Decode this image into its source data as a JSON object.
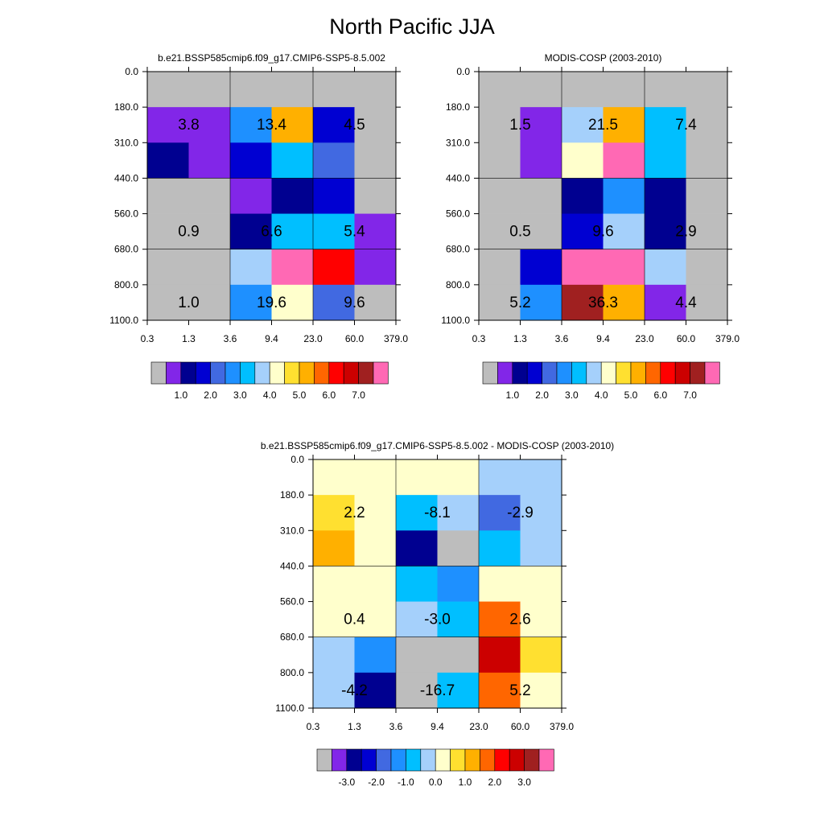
{
  "title": "North Pacific JJA",
  "palette": {
    "grey": "#bdbdbd",
    "violet": "#8226e8",
    "navy": "#000090",
    "blue": "#0000d2",
    "royal": "#4169e1",
    "dodger": "#1e90ff",
    "sky": "#00bfff",
    "lightblue": "#a5d0fb",
    "cream": "#ffffcc",
    "yellow": "#ffe030",
    "gold": "#ffb000",
    "orange": "#ff9a00",
    "darkorange": "#ff6600",
    "red": "#ff0000",
    "crimson": "#cc0000",
    "brown": "#a02020",
    "pink": "#ff69b4"
  },
  "chart_data": [
    {
      "type": "heatmap",
      "title": "b.e21.BSSP585cmip6.f09_g17.CMIP6-SSP5-8.5.002",
      "x_ticks": [
        "0.3",
        "1.3",
        "3.6",
        "9.4",
        "23.0",
        "60.0",
        "379.0"
      ],
      "y_ticks": [
        "0.0",
        "180.0",
        "310.0",
        "440.0",
        "560.0",
        "680.0",
        "800.0",
        "1100.0"
      ],
      "cells": [
        [
          "grey",
          "grey",
          "grey",
          "grey",
          "grey",
          "grey"
        ],
        [
          "violet",
          "violet",
          "dodger",
          "gold",
          "blue",
          "grey"
        ],
        [
          "navy",
          "violet",
          "blue",
          "sky",
          "royal",
          "grey"
        ],
        [
          "grey",
          "grey",
          "violet",
          "navy",
          "blue",
          "grey"
        ],
        [
          "grey",
          "grey",
          "navy",
          "sky",
          "sky",
          "violet"
        ],
        [
          "grey",
          "grey",
          "lightblue",
          "pink",
          "red",
          "violet"
        ],
        [
          "grey",
          "grey",
          "dodger",
          "cream",
          "royal",
          "grey"
        ]
      ],
      "annotations": [
        [
          "3.8",
          "13.4",
          "4.5"
        ],
        [
          "0.9",
          "6.6",
          "5.4"
        ],
        [
          "1.0",
          "19.6",
          "9.6"
        ]
      ],
      "colorbar": {
        "colors": [
          "grey",
          "violet",
          "navy",
          "blue",
          "royal",
          "dodger",
          "sky",
          "lightblue",
          "cream",
          "yellow",
          "gold",
          "darkorange",
          "red",
          "crimson",
          "brown",
          "pink"
        ],
        "labels": [
          "1.0",
          "2.0",
          "3.0",
          "4.0",
          "5.0",
          "6.0",
          "7.0"
        ]
      }
    },
    {
      "type": "heatmap",
      "title": "MODIS-COSP (2003-2010)",
      "x_ticks": [
        "0.3",
        "1.3",
        "3.6",
        "9.4",
        "23.0",
        "60.0",
        "379.0"
      ],
      "y_ticks": [
        "0.0",
        "180.0",
        "310.0",
        "440.0",
        "560.0",
        "680.0",
        "800.0",
        "1100.0"
      ],
      "cells": [
        [
          "grey",
          "grey",
          "grey",
          "grey",
          "grey",
          "grey"
        ],
        [
          "grey",
          "violet",
          "lightblue",
          "gold",
          "sky",
          "grey"
        ],
        [
          "grey",
          "violet",
          "cream",
          "pink",
          "sky",
          "grey"
        ],
        [
          "grey",
          "grey",
          "navy",
          "dodger",
          "navy",
          "grey"
        ],
        [
          "grey",
          "grey",
          "blue",
          "lightblue",
          "navy",
          "grey"
        ],
        [
          "grey",
          "blue",
          "pink",
          "pink",
          "lightblue",
          "grey"
        ],
        [
          "grey",
          "dodger",
          "brown",
          "gold",
          "violet",
          "grey"
        ]
      ],
      "annotations": [
        [
          "1.5",
          "21.5",
          "7.4"
        ],
        [
          "0.5",
          "9.6",
          "2.9"
        ],
        [
          "5.2",
          "36.3",
          "4.4"
        ]
      ],
      "colorbar": {
        "colors": [
          "grey",
          "violet",
          "navy",
          "blue",
          "royal",
          "dodger",
          "sky",
          "lightblue",
          "cream",
          "yellow",
          "gold",
          "darkorange",
          "red",
          "crimson",
          "brown",
          "pink"
        ],
        "labels": [
          "1.0",
          "2.0",
          "3.0",
          "4.0",
          "5.0",
          "6.0",
          "7.0"
        ]
      }
    },
    {
      "type": "heatmap",
      "title": "b.e21.BSSP585cmip6.f09_g17.CMIP6-SSP5-8.5.002 - MODIS-COSP (2003-2010)",
      "x_ticks": [
        "0.3",
        "1.3",
        "3.6",
        "9.4",
        "23.0",
        "60.0",
        "379.0"
      ],
      "y_ticks": [
        "0.0",
        "180.0",
        "310.0",
        "440.0",
        "560.0",
        "680.0",
        "800.0",
        "1100.0"
      ],
      "cells": [
        [
          "cream",
          "cream",
          "cream",
          "cream",
          "lightblue",
          "lightblue"
        ],
        [
          "yellow",
          "cream",
          "sky",
          "lightblue",
          "royal",
          "lightblue"
        ],
        [
          "gold",
          "cream",
          "navy",
          "grey",
          "sky",
          "lightblue"
        ],
        [
          "cream",
          "cream",
          "sky",
          "dodger",
          "cream",
          "cream"
        ],
        [
          "cream",
          "cream",
          "lightblue",
          "sky",
          "darkorange",
          "cream"
        ],
        [
          "lightblue",
          "dodger",
          "grey",
          "grey",
          "crimson",
          "yellow"
        ],
        [
          "lightblue",
          "navy",
          "grey",
          "sky",
          "darkorange",
          "cream"
        ]
      ],
      "annotations": [
        [
          "2.2",
          "-8.1",
          "-2.9"
        ],
        [
          "0.4",
          "-3.0",
          "2.6"
        ],
        [
          "-4.2",
          "-16.7",
          "5.2"
        ]
      ],
      "colorbar": {
        "colors": [
          "grey",
          "violet",
          "navy",
          "blue",
          "royal",
          "dodger",
          "sky",
          "lightblue",
          "cream",
          "yellow",
          "gold",
          "darkorange",
          "red",
          "crimson",
          "brown",
          "pink"
        ],
        "labels": [
          "-3.0",
          "-2.0",
          "-1.0",
          "0.0",
          "1.0",
          "2.0",
          "3.0"
        ]
      }
    }
  ]
}
